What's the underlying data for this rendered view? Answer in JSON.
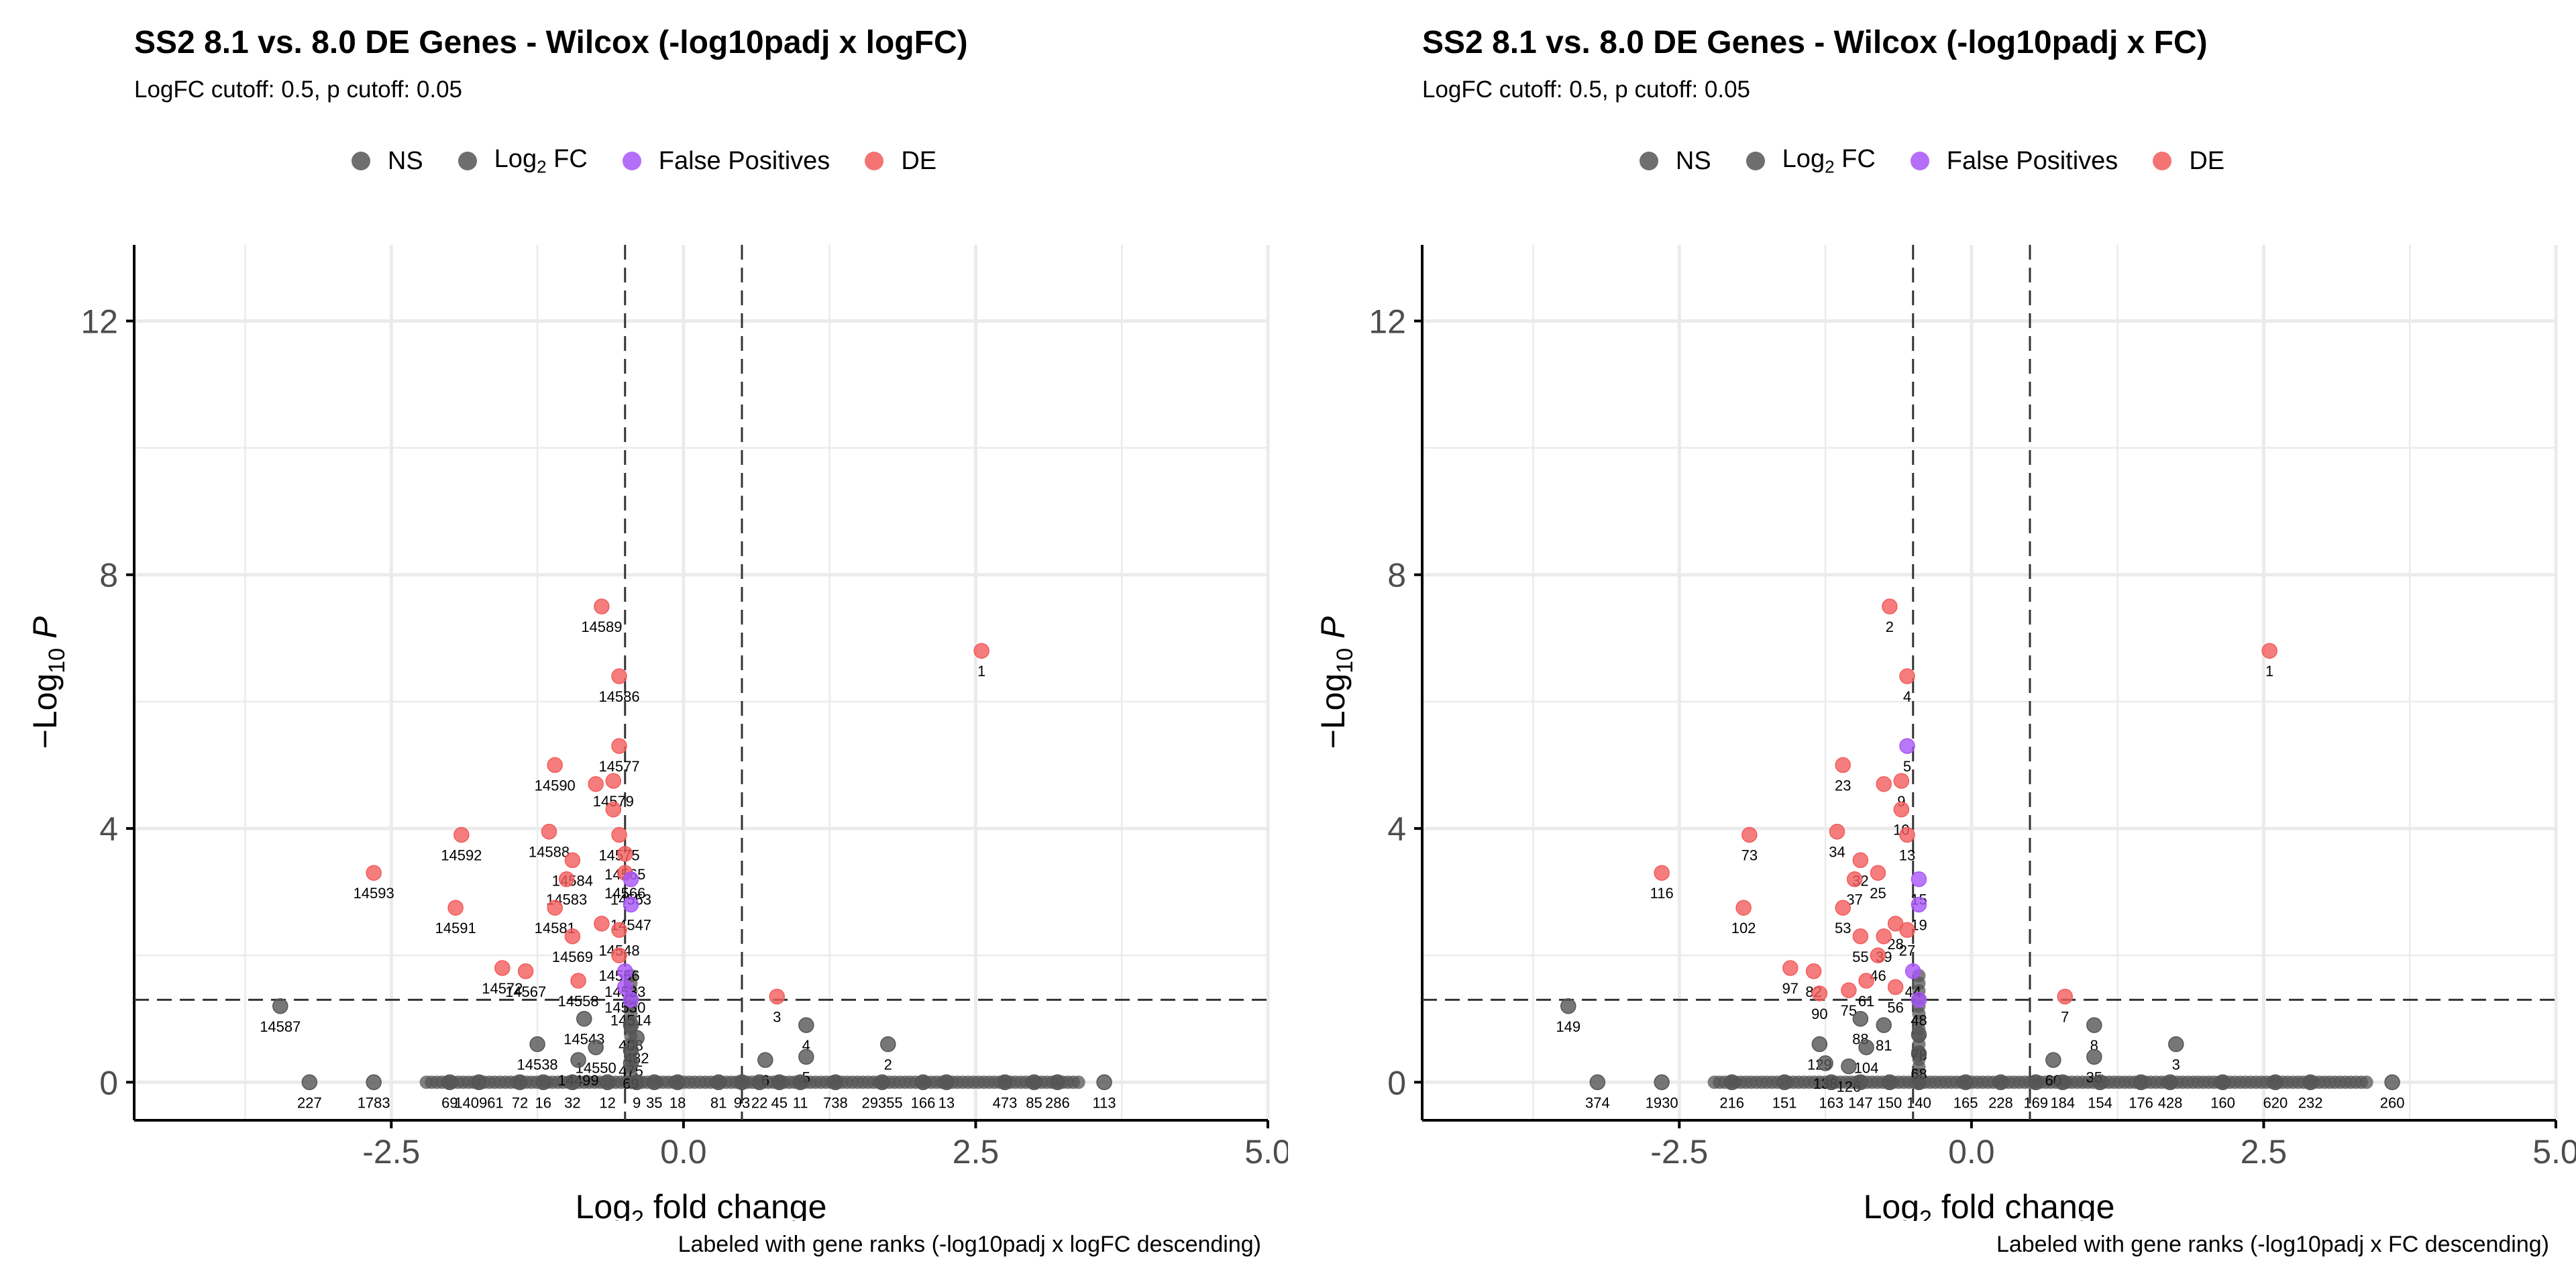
{
  "colors": {
    "NS": "#555555",
    "Log2FC": "#555555",
    "FalsePositive": "#a855f7",
    "DE": "#f25c5c"
  },
  "legend": [
    {
      "key": "NS",
      "label": "NS"
    },
    {
      "key": "Log2FC",
      "label": "Log",
      "sub": "2",
      "suffix": " FC"
    },
    {
      "key": "FalsePositive",
      "label": "False Positives"
    },
    {
      "key": "DE",
      "label": "DE"
    }
  ],
  "chart_data": [
    {
      "type": "scatter",
      "title": "SS2 8.1 vs. 8.0 DE Genes - Wilcox (-log10padj x logFC)",
      "subtitle": "LogFC cutoff: 0.5, p cutoff: 0.05",
      "xlabel_prefix": "Log",
      "xlabel_sub": "2",
      "xlabel_suffix": " fold change",
      "ylabel_prefix": "−Log",
      "ylabel_sub": "10",
      "ylabel_suffix": " P",
      "caption": "Labeled with gene ranks (-log10padj x logFC descending)",
      "xlim": [
        -4.7,
        5.0
      ],
      "ylim": [
        -0.6,
        13.2
      ],
      "xticks": [
        -2.5,
        0.0,
        2.5,
        5.0
      ],
      "xtick_labels": [
        "-2.5",
        "0.0",
        "2.5",
        "5.0"
      ],
      "yticks": [
        0,
        4,
        8,
        12
      ],
      "ytick_labels": [
        "0",
        "4",
        "8",
        "12"
      ],
      "cutoffs": {
        "logfc": [
          -0.5,
          0.5
        ],
        "p_log10": 1.3
      },
      "points": [
        {
          "x": 2.55,
          "y": 6.8,
          "g": "DE",
          "label": "1"
        },
        {
          "x": -0.7,
          "y": 7.5,
          "g": "DE",
          "label": "14589"
        },
        {
          "x": -0.55,
          "y": 6.4,
          "g": "DE",
          "label": "14586"
        },
        {
          "x": -0.55,
          "y": 5.3,
          "g": "DE",
          "label": "14577"
        },
        {
          "x": -1.1,
          "y": 5.0,
          "g": "DE",
          "label": "14590"
        },
        {
          "x": -0.6,
          "y": 4.75,
          "g": "DE",
          "label": "14579"
        },
        {
          "x": -0.75,
          "y": 4.7,
          "g": "DE"
        },
        {
          "x": -0.6,
          "y": 4.3,
          "g": "DE"
        },
        {
          "x": -1.9,
          "y": 3.9,
          "g": "DE",
          "label": "14592"
        },
        {
          "x": -1.15,
          "y": 3.95,
          "g": "DE",
          "label": "14588"
        },
        {
          "x": -0.55,
          "y": 3.9,
          "g": "DE",
          "label": "14575"
        },
        {
          "x": -2.65,
          "y": 3.3,
          "g": "DE",
          "label": "14593"
        },
        {
          "x": -0.95,
          "y": 3.5,
          "g": "DE",
          "label": "14584"
        },
        {
          "x": -0.5,
          "y": 3.6,
          "g": "DE",
          "label": "14565"
        },
        {
          "x": -0.5,
          "y": 3.3,
          "g": "DE",
          "label": "14566"
        },
        {
          "x": -1.0,
          "y": 3.2,
          "g": "DE",
          "label": "14583"
        },
        {
          "x": -0.45,
          "y": 3.2,
          "g": "FalsePositive",
          "label": "14553"
        },
        {
          "x": -1.95,
          "y": 2.75,
          "g": "DE",
          "label": "14591"
        },
        {
          "x": -1.1,
          "y": 2.75,
          "g": "DE",
          "label": "14581"
        },
        {
          "x": -0.45,
          "y": 2.8,
          "g": "FalsePositive",
          "label": "14547"
        },
        {
          "x": -0.7,
          "y": 2.5,
          "g": "DE"
        },
        {
          "x": -0.55,
          "y": 2.4,
          "g": "DE",
          "label": "14548"
        },
        {
          "x": -0.95,
          "y": 2.3,
          "g": "DE",
          "label": "14569"
        },
        {
          "x": -0.55,
          "y": 2.0,
          "g": "DE",
          "label": "14556"
        },
        {
          "x": -1.55,
          "y": 1.8,
          "g": "DE",
          "label": "14572"
        },
        {
          "x": -1.35,
          "y": 1.75,
          "g": "DE",
          "label": "14567"
        },
        {
          "x": -0.9,
          "y": 1.6,
          "g": "DE",
          "label": "14558"
        },
        {
          "x": -0.5,
          "y": 1.75,
          "g": "FalsePositive",
          "label": "14533"
        },
        {
          "x": -0.5,
          "y": 1.5,
          "g": "FalsePositive",
          "label": "14530"
        },
        {
          "x": -0.45,
          "y": 1.3,
          "g": "FalsePositive",
          "label": "14514"
        },
        {
          "x": 0.8,
          "y": 1.35,
          "g": "DE",
          "label": "3"
        },
        {
          "x": -3.45,
          "y": 1.2,
          "g": "NS",
          "label": "14587"
        },
        {
          "x": -0.85,
          "y": 1.0,
          "g": "NS",
          "label": "14543"
        },
        {
          "x": -0.45,
          "y": 0.9,
          "g": "NS",
          "label": "408"
        },
        {
          "x": -0.4,
          "y": 0.7,
          "g": "NS",
          "label": "482"
        },
        {
          "x": -1.25,
          "y": 0.6,
          "g": "NS",
          "label": "14538"
        },
        {
          "x": -0.75,
          "y": 0.55,
          "g": "NS",
          "label": "14550"
        },
        {
          "x": -0.45,
          "y": 0.5,
          "g": "NS",
          "label": "475"
        },
        {
          "x": -0.9,
          "y": 0.35,
          "g": "NS",
          "label": "14499"
        },
        {
          "x": -0.45,
          "y": 0.3,
          "g": "NS",
          "label": "69"
        },
        {
          "x": 1.05,
          "y": 0.9,
          "g": "NS",
          "label": "4"
        },
        {
          "x": 1.05,
          "y": 0.4,
          "g": "NS",
          "label": "5"
        },
        {
          "x": 0.7,
          "y": 0.35,
          "g": "NS",
          "label": "6"
        },
        {
          "x": 1.75,
          "y": 0.6,
          "g": "NS",
          "label": "2"
        },
        {
          "x": -3.2,
          "y": 0.0,
          "g": "NS",
          "label": "227"
        },
        {
          "x": -2.65,
          "y": 0.0,
          "g": "NS",
          "label": "1783"
        },
        {
          "x": -2.0,
          "y": 0.0,
          "g": "NS",
          "label": "69"
        },
        {
          "x": -1.75,
          "y": 0.0,
          "g": "NS",
          "label": "140961"
        },
        {
          "x": -1.4,
          "y": 0.0,
          "g": "NS",
          "label": "72"
        },
        {
          "x": -1.2,
          "y": 0.0,
          "g": "NS",
          "label": "16"
        },
        {
          "x": -0.95,
          "y": 0.0,
          "g": "NS",
          "label": "32"
        },
        {
          "x": -0.65,
          "y": 0.0,
          "g": "NS",
          "label": "12"
        },
        {
          "x": -0.4,
          "y": 0.0,
          "g": "NS",
          "label": "9"
        },
        {
          "x": -0.25,
          "y": 0.0,
          "g": "NS",
          "label": "35"
        },
        {
          "x": -0.05,
          "y": 0.0,
          "g": "NS",
          "label": "18"
        },
        {
          "x": 0.3,
          "y": 0.0,
          "g": "NS",
          "label": "81"
        },
        {
          "x": 0.5,
          "y": 0.0,
          "g": "NS",
          "label": "93"
        },
        {
          "x": 0.65,
          "y": 0.0,
          "g": "NS",
          "label": "22"
        },
        {
          "x": 0.82,
          "y": 0.0,
          "g": "NS",
          "label": "45"
        },
        {
          "x": 1.0,
          "y": 0.0,
          "g": "NS",
          "label": "11"
        },
        {
          "x": 1.3,
          "y": 0.0,
          "g": "NS",
          "label": "738"
        },
        {
          "x": 1.7,
          "y": 0.0,
          "g": "NS",
          "label": "29355"
        },
        {
          "x": 2.05,
          "y": 0.0,
          "g": "NS",
          "label": "166"
        },
        {
          "x": 2.25,
          "y": 0.0,
          "g": "NS",
          "label": "13"
        },
        {
          "x": 2.75,
          "y": 0.0,
          "g": "NS",
          "label": "473"
        },
        {
          "x": 3.0,
          "y": 0.0,
          "g": "NS",
          "label": "85"
        },
        {
          "x": 3.2,
          "y": 0.0,
          "g": "NS",
          "label": "286"
        },
        {
          "x": 3.6,
          "y": 0.0,
          "g": "NS",
          "label": "113"
        }
      ]
    },
    {
      "type": "scatter",
      "title": "SS2 8.1 vs. 8.0 DE Genes - Wilcox (-log10padj x FC)",
      "subtitle": "LogFC cutoff: 0.5, p cutoff: 0.05",
      "xlabel_prefix": "Log",
      "xlabel_sub": "2",
      "xlabel_suffix": " fold change",
      "ylabel_prefix": "−Log",
      "ylabel_sub": "10",
      "ylabel_suffix": " P",
      "caption": "Labeled with gene ranks (-log10padj x FC descending)",
      "xlim": [
        -4.7,
        5.0
      ],
      "ylim": [
        -0.6,
        13.2
      ],
      "xticks": [
        -2.5,
        0.0,
        2.5,
        5.0
      ],
      "xtick_labels": [
        "-2.5",
        "0.0",
        "2.5",
        "5.0"
      ],
      "yticks": [
        0,
        4,
        8,
        12
      ],
      "ytick_labels": [
        "0",
        "4",
        "8",
        "12"
      ],
      "cutoffs": {
        "logfc": [
          -0.5,
          0.5
        ],
        "p_log10": 1.3
      },
      "points": [
        {
          "x": 2.55,
          "y": 6.8,
          "g": "DE",
          "label": "1"
        },
        {
          "x": -0.7,
          "y": 7.5,
          "g": "DE",
          "label": "2"
        },
        {
          "x": -0.55,
          "y": 6.4,
          "g": "DE",
          "label": "4"
        },
        {
          "x": -0.55,
          "y": 5.3,
          "g": "FalsePositive",
          "label": "5"
        },
        {
          "x": -1.1,
          "y": 5.0,
          "g": "DE",
          "label": "23"
        },
        {
          "x": -0.6,
          "y": 4.75,
          "g": "DE",
          "label": "9"
        },
        {
          "x": -0.75,
          "y": 4.7,
          "g": "DE"
        },
        {
          "x": -0.6,
          "y": 4.3,
          "g": "DE",
          "label": "10"
        },
        {
          "x": -1.9,
          "y": 3.9,
          "g": "DE",
          "label": "73"
        },
        {
          "x": -1.15,
          "y": 3.95,
          "g": "DE",
          "label": "34"
        },
        {
          "x": -0.55,
          "y": 3.9,
          "g": "DE",
          "label": "13"
        },
        {
          "x": -2.65,
          "y": 3.3,
          "g": "DE",
          "label": "116"
        },
        {
          "x": -0.95,
          "y": 3.5,
          "g": "DE",
          "label": "32"
        },
        {
          "x": -0.8,
          "y": 3.3,
          "g": "DE",
          "label": "25"
        },
        {
          "x": -1.0,
          "y": 3.2,
          "g": "DE",
          "label": "37"
        },
        {
          "x": -0.45,
          "y": 3.2,
          "g": "FalsePositive",
          "label": "15"
        },
        {
          "x": -1.95,
          "y": 2.75,
          "g": "DE",
          "label": "102"
        },
        {
          "x": -1.1,
          "y": 2.75,
          "g": "DE",
          "label": "53"
        },
        {
          "x": -0.45,
          "y": 2.8,
          "g": "FalsePositive",
          "label": "19"
        },
        {
          "x": -0.65,
          "y": 2.5,
          "g": "DE",
          "label": "28"
        },
        {
          "x": -0.55,
          "y": 2.4,
          "g": "DE",
          "label": "27"
        },
        {
          "x": -0.95,
          "y": 2.3,
          "g": "DE",
          "label": "55"
        },
        {
          "x": -0.75,
          "y": 2.3,
          "g": "DE",
          "label": "39"
        },
        {
          "x": -0.8,
          "y": 2.0,
          "g": "DE",
          "label": "46"
        },
        {
          "x": -1.55,
          "y": 1.8,
          "g": "DE",
          "label": "97"
        },
        {
          "x": -1.35,
          "y": 1.75,
          "g": "DE",
          "label": "82"
        },
        {
          "x": -0.9,
          "y": 1.6,
          "g": "DE",
          "label": "61"
        },
        {
          "x": -0.5,
          "y": 1.75,
          "g": "FalsePositive",
          "label": "44"
        },
        {
          "x": -0.65,
          "y": 1.5,
          "g": "DE",
          "label": "56"
        },
        {
          "x": -1.3,
          "y": 1.4,
          "g": "DE",
          "label": "90"
        },
        {
          "x": -1.05,
          "y": 1.45,
          "g": "DE",
          "label": "75"
        },
        {
          "x": -0.45,
          "y": 1.3,
          "g": "FalsePositive",
          "label": "48"
        },
        {
          "x": 0.8,
          "y": 1.35,
          "g": "DE",
          "label": "7"
        },
        {
          "x": -3.45,
          "y": 1.2,
          "g": "NS",
          "label": "149"
        },
        {
          "x": -0.95,
          "y": 1.0,
          "g": "NS",
          "label": "88"
        },
        {
          "x": -0.75,
          "y": 0.9,
          "g": "NS",
          "label": "81"
        },
        {
          "x": -0.45,
          "y": 0.75,
          "g": "NS",
          "label": "78"
        },
        {
          "x": -1.3,
          "y": 0.6,
          "g": "NS",
          "label": "129"
        },
        {
          "x": -0.9,
          "y": 0.55,
          "g": "NS",
          "label": "104"
        },
        {
          "x": -0.45,
          "y": 0.45,
          "g": "NS",
          "label": "68"
        },
        {
          "x": -1.25,
          "y": 0.3,
          "g": "NS",
          "label": "138"
        },
        {
          "x": -1.05,
          "y": 0.25,
          "g": "NS",
          "label": "126"
        },
        {
          "x": 1.05,
          "y": 0.9,
          "g": "NS",
          "label": "8"
        },
        {
          "x": 1.05,
          "y": 0.4,
          "g": "NS",
          "label": "35"
        },
        {
          "x": 0.7,
          "y": 0.35,
          "g": "NS",
          "label": "60"
        },
        {
          "x": 1.75,
          "y": 0.6,
          "g": "NS",
          "label": "3"
        },
        {
          "x": -3.2,
          "y": 0.0,
          "g": "NS",
          "label": "374"
        },
        {
          "x": -2.65,
          "y": 0.0,
          "g": "NS",
          "label": "1930"
        },
        {
          "x": -2.05,
          "y": 0.0,
          "g": "NS",
          "label": "216"
        },
        {
          "x": -1.6,
          "y": 0.0,
          "g": "NS",
          "label": "151"
        },
        {
          "x": -1.2,
          "y": 0.0,
          "g": "NS",
          "label": "163"
        },
        {
          "x": -0.95,
          "y": 0.0,
          "g": "NS",
          "label": "147"
        },
        {
          "x": -0.7,
          "y": 0.0,
          "g": "NS",
          "label": "150"
        },
        {
          "x": -0.45,
          "y": 0.0,
          "g": "NS",
          "label": "140"
        },
        {
          "x": -0.05,
          "y": 0.0,
          "g": "NS",
          "label": "165"
        },
        {
          "x": 0.25,
          "y": 0.0,
          "g": "NS",
          "label": "228"
        },
        {
          "x": 0.55,
          "y": 0.0,
          "g": "NS",
          "label": "169"
        },
        {
          "x": 0.78,
          "y": 0.0,
          "g": "NS",
          "label": "184"
        },
        {
          "x": 1.1,
          "y": 0.0,
          "g": "NS",
          "label": "154"
        },
        {
          "x": 1.45,
          "y": 0.0,
          "g": "NS",
          "label": "176"
        },
        {
          "x": 1.7,
          "y": 0.0,
          "g": "NS",
          "label": "428"
        },
        {
          "x": 2.15,
          "y": 0.0,
          "g": "NS",
          "label": "160"
        },
        {
          "x": 2.6,
          "y": 0.0,
          "g": "NS",
          "label": "620"
        },
        {
          "x": 2.9,
          "y": 0.0,
          "g": "NS",
          "label": "232"
        },
        {
          "x": 3.6,
          "y": 0.0,
          "g": "NS",
          "label": "260"
        }
      ]
    }
  ]
}
